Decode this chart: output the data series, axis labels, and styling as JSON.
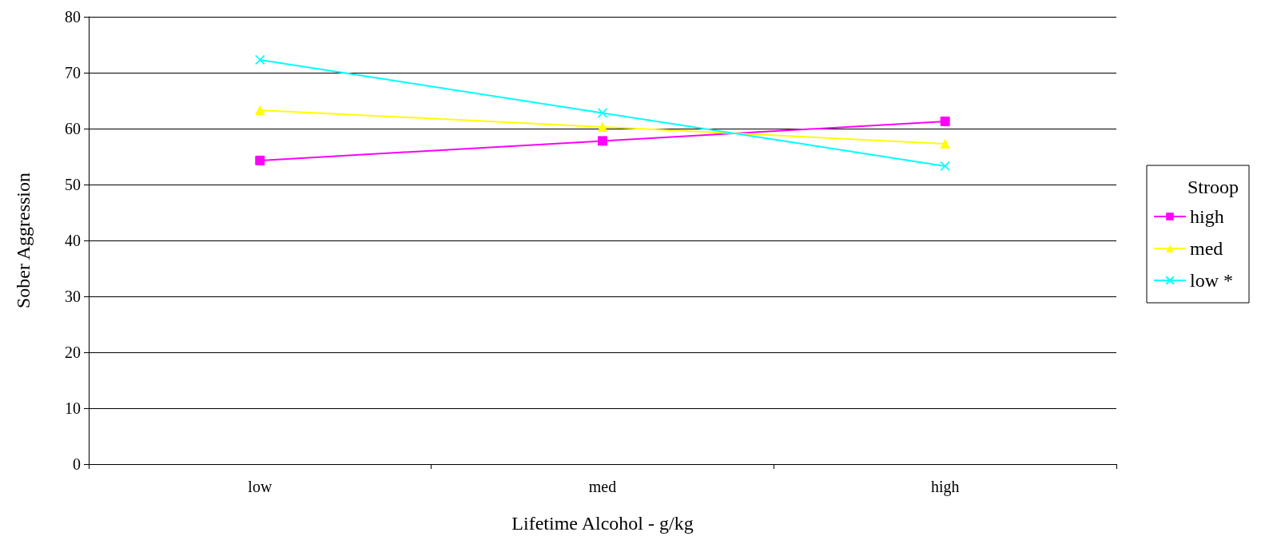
{
  "chart_data": {
    "type": "line",
    "xlabel": "Lifetime Alcohol - g/kg",
    "ylabel": "Sober Aggression",
    "legend_title": "Stroop",
    "categories": [
      "low",
      "med",
      "high"
    ],
    "series": [
      {
        "name": "high",
        "color": "#ff00ff",
        "marker": "square",
        "values": [
          54.3,
          57.8,
          61.3
        ]
      },
      {
        "name": "med",
        "color": "#ffff00",
        "marker": "triangle",
        "values": [
          63.3,
          60.3,
          57.3
        ]
      },
      {
        "name": "low *",
        "color": "#00ffff",
        "marker": "cross",
        "values": [
          72.3,
          62.8,
          53.3
        ]
      }
    ],
    "ylim": [
      0,
      80
    ],
    "yticks": [
      0,
      10,
      20,
      30,
      40,
      50,
      60,
      70,
      80
    ],
    "grid": "y",
    "legend": "right"
  }
}
